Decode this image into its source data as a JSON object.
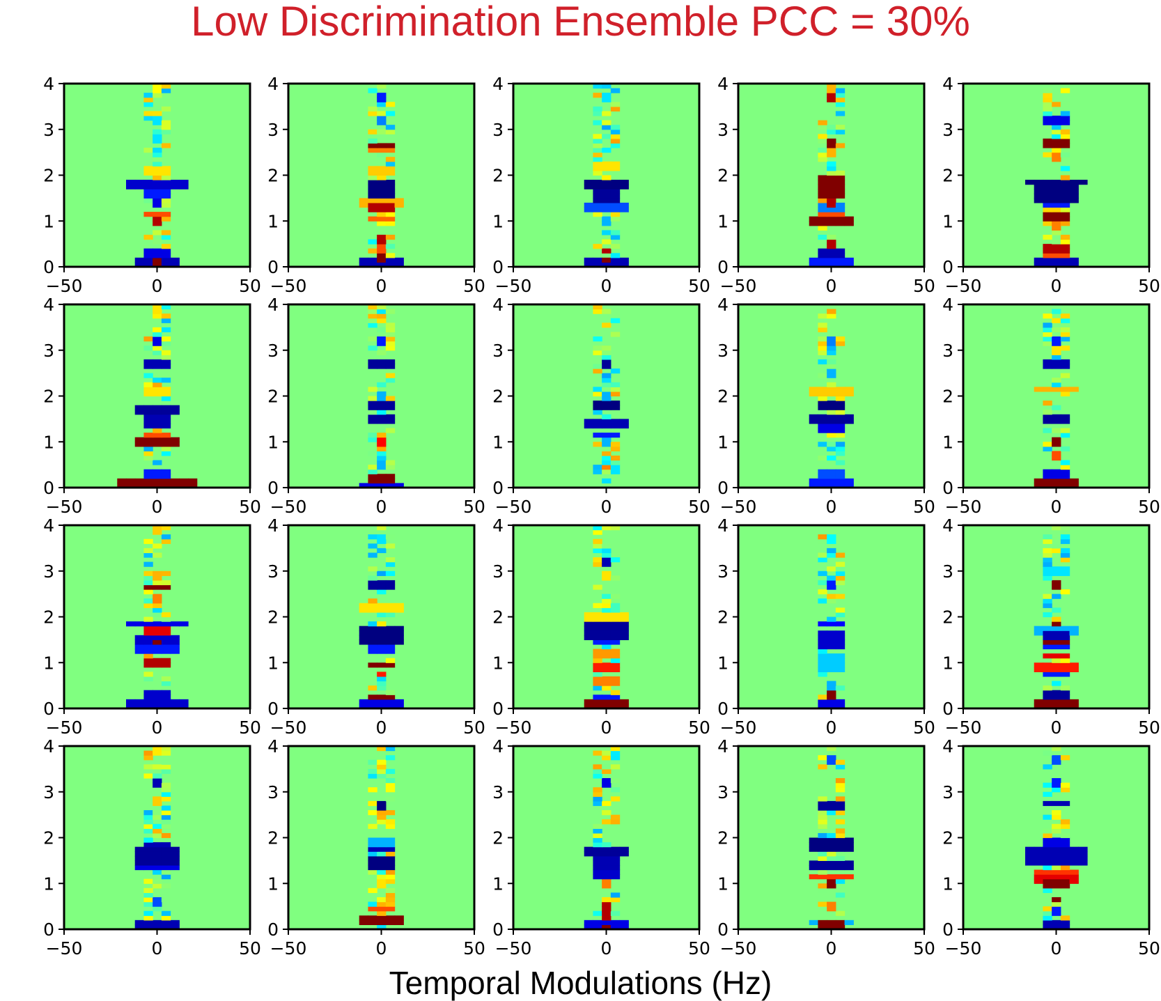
{
  "chart_data": {
    "type": "heatmap",
    "title": "Low Discrimination Ensemble PCC = 30%",
    "xlabel": "Temporal Modulations (Hz)",
    "ylabel": "",
    "grid": {
      "rows": 4,
      "cols": 5
    },
    "xlim": [
      -50,
      50
    ],
    "ylim": [
      0,
      4
    ],
    "x_ticks": [
      -50,
      0,
      50
    ],
    "y_ticks": [
      0,
      1,
      2,
      3,
      4
    ],
    "x_tick_labels": [
      "−50",
      "0",
      "50"
    ],
    "y_tick_labels": [
      "0",
      "1",
      "2",
      "3",
      "4"
    ],
    "n_time_bins": 21,
    "n_freq_bins": 40,
    "colormap": "jet",
    "value_range": [
      -1,
      1
    ],
    "note": "Each panel: list of horizontal features [y_center, half_width_hz, value, thickness] in data units; value -1=dark blue, 0=green background, +1=dark red",
    "panels": [
      [
        [
          1.8,
          18,
          -0.85,
          0.15
        ],
        [
          1.85,
          7,
          0.6,
          0.15
        ],
        [
          1.6,
          6,
          -0.7,
          0.2
        ],
        [
          1.4,
          4,
          -0.8,
          0.15
        ],
        [
          1.0,
          4,
          0.9,
          0.1
        ],
        [
          1.15,
          6,
          0.6,
          0.1
        ],
        [
          0.3,
          5,
          -0.8,
          0.1
        ],
        [
          0.1,
          14,
          -0.9,
          0.15
        ],
        [
          0.1,
          4,
          1.0,
          0.2
        ],
        [
          2.1,
          6,
          0.3,
          0.2
        ],
        [
          2.8,
          4,
          -0.3,
          0.1
        ],
        [
          3.2,
          3,
          -0.3,
          0.1
        ],
        [
          3.9,
          2,
          0.25,
          0.1
        ]
      ],
      [
        [
          1.7,
          8,
          -1.0,
          0.45
        ],
        [
          2.65,
          7,
          1.0,
          0.12
        ],
        [
          2.6,
          5,
          0.5,
          0.1
        ],
        [
          3.2,
          3,
          -0.5,
          0.1
        ],
        [
          3.7,
          4,
          -0.7,
          0.1
        ],
        [
          1.4,
          14,
          0.4,
          0.1
        ],
        [
          1.3,
          6,
          0.9,
          0.15
        ],
        [
          1.05,
          6,
          0.55,
          0.1
        ],
        [
          0.6,
          4,
          0.9,
          0.12
        ],
        [
          0.4,
          4,
          0.6,
          0.1
        ],
        [
          0.1,
          10,
          -0.9,
          0.12
        ],
        [
          0.2,
          4,
          1.0,
          0.1
        ],
        [
          2.1,
          8,
          0.35,
          0.2
        ]
      ],
      [
        [
          1.8,
          10,
          -1.0,
          0.2
        ],
        [
          1.55,
          7,
          -0.95,
          0.35
        ],
        [
          1.3,
          10,
          -0.6,
          0.1
        ],
        [
          1.0,
          4,
          -0.4,
          0.1
        ],
        [
          0.35,
          4,
          0.9,
          0.12
        ],
        [
          0.1,
          10,
          -0.9,
          0.12
        ],
        [
          0.15,
          4,
          1.0,
          0.1
        ],
        [
          3.2,
          2,
          -0.6,
          0.08
        ],
        [
          3.7,
          2,
          -0.3,
          0.1
        ],
        [
          2.2,
          5,
          0.3,
          0.15
        ]
      ],
      [
        [
          1.75,
          6,
          1.0,
          0.45
        ],
        [
          1.95,
          6,
          0.6,
          0.15
        ],
        [
          1.4,
          4,
          0.9,
          0.15
        ],
        [
          1.3,
          8,
          -0.5,
          0.1
        ],
        [
          1.0,
          10,
          1.0,
          0.15
        ],
        [
          1.1,
          5,
          0.6,
          0.1
        ],
        [
          0.5,
          4,
          0.9,
          0.1
        ],
        [
          0.3,
          6,
          -0.9,
          0.1
        ],
        [
          0.1,
          14,
          -0.7,
          0.12
        ],
        [
          2.7,
          4,
          1.0,
          0.1
        ],
        [
          2.5,
          4,
          0.4,
          0.1
        ],
        [
          3.7,
          3,
          0.9,
          0.1
        ],
        [
          3.9,
          2,
          0.4,
          0.1
        ]
      ],
      [
        [
          1.85,
          18,
          -1.0,
          0.15
        ],
        [
          1.6,
          10,
          -1.0,
          0.3
        ],
        [
          1.35,
          6,
          -0.7,
          0.15
        ],
        [
          1.1,
          6,
          1.0,
          0.12
        ],
        [
          0.9,
          4,
          0.5,
          0.1
        ],
        [
          0.4,
          5,
          0.9,
          0.15
        ],
        [
          0.2,
          6,
          0.6,
          0.15
        ],
        [
          0.1,
          10,
          -0.9,
          0.1
        ],
        [
          2.7,
          8,
          1.0,
          0.1
        ],
        [
          2.4,
          4,
          0.5,
          0.1
        ],
        [
          3.2,
          5,
          -0.8,
          0.1
        ],
        [
          3.7,
          4,
          -0.6,
          0.08
        ]
      ],
      [
        [
          1.7,
          10,
          -0.95,
          0.25
        ],
        [
          1.45,
          8,
          -0.9,
          0.3
        ],
        [
          1.9,
          5,
          1.0,
          0.08
        ],
        [
          1.0,
          12,
          1.0,
          0.12
        ],
        [
          1.15,
          5,
          0.6,
          0.1
        ],
        [
          0.6,
          4,
          0.7,
          0.08
        ],
        [
          0.3,
          5,
          -0.7,
          0.1
        ],
        [
          0.1,
          20,
          1.0,
          0.12
        ],
        [
          0.15,
          8,
          0.6,
          0.1
        ],
        [
          2.7,
          5,
          -0.9,
          0.12
        ],
        [
          3.2,
          4,
          -0.8,
          0.1
        ],
        [
          3.9,
          2,
          0.3,
          0.1
        ],
        [
          2.1,
          8,
          0.3,
          0.2
        ]
      ],
      [
        [
          1.8,
          8,
          -0.95,
          0.2
        ],
        [
          1.5,
          8,
          -0.95,
          0.2
        ],
        [
          2.7,
          5,
          -0.95,
          0.12
        ],
        [
          3.2,
          4,
          -0.7,
          0.1
        ],
        [
          1.0,
          4,
          0.75,
          0.12
        ],
        [
          0.5,
          3,
          -0.4,
          0.1
        ],
        [
          0.2,
          5,
          1.0,
          0.1
        ],
        [
          0.05,
          12,
          -0.8,
          0.08
        ],
        [
          2.0,
          4,
          -0.4,
          0.1
        ]
      ],
      [
        [
          1.8,
          8,
          -1.0,
          0.2
        ],
        [
          1.4,
          12,
          -0.9,
          0.25
        ],
        [
          1.15,
          7,
          -0.7,
          0.15
        ],
        [
          2.7,
          4,
          -0.95,
          0.12
        ],
        [
          0.45,
          4,
          0.5,
          0.1
        ],
        [
          0.1,
          12,
          -0.8,
          0.08
        ],
        [
          2.0,
          4,
          -0.4,
          0.1
        ],
        [
          1.0,
          3,
          -0.4,
          0.1
        ]
      ],
      [
        [
          1.8,
          8,
          -1.0,
          0.15
        ],
        [
          1.5,
          12,
          -0.95,
          0.2
        ],
        [
          1.3,
          8,
          -0.8,
          0.1
        ],
        [
          1.6,
          5,
          0.7,
          0.08
        ],
        [
          2.5,
          3,
          -0.4,
          0.1
        ],
        [
          3.2,
          4,
          -0.5,
          0.1
        ],
        [
          0.3,
          5,
          -0.6,
          0.1
        ],
        [
          0.1,
          14,
          -0.7,
          0.1
        ],
        [
          2.1,
          10,
          0.35,
          0.15
        ]
      ],
      [
        [
          1.5,
          8,
          -0.95,
          0.25
        ],
        [
          1.8,
          8,
          0.9,
          0.08
        ],
        [
          1.0,
          4,
          1.0,
          0.12
        ],
        [
          0.7,
          3,
          0.6,
          0.1
        ],
        [
          0.3,
          6,
          -0.8,
          0.15
        ],
        [
          0.1,
          10,
          1.0,
          0.1
        ],
        [
          2.7,
          5,
          -0.9,
          0.12
        ],
        [
          3.2,
          3,
          -0.7,
          0.1
        ],
        [
          2.15,
          14,
          0.4,
          0.1
        ]
      ],
      [
        [
          2.65,
          6,
          1.0,
          0.1
        ],
        [
          2.4,
          4,
          0.5,
          0.1
        ],
        [
          1.85,
          16,
          -0.8,
          0.12
        ],
        [
          1.7,
          6,
          0.8,
          0.1
        ],
        [
          1.5,
          12,
          -0.85,
          0.15
        ],
        [
          1.45,
          4,
          1.0,
          0.12
        ],
        [
          1.3,
          10,
          -0.7,
          0.1
        ],
        [
          1.0,
          6,
          0.9,
          0.12
        ],
        [
          0.3,
          8,
          -0.85,
          0.15
        ],
        [
          0.1,
          18,
          -0.85,
          0.15
        ],
        [
          2.9,
          3,
          0.4,
          0.1
        ],
        [
          3.9,
          2,
          0.35,
          0.1
        ]
      ],
      [
        [
          1.6,
          10,
          -1.0,
          0.4
        ],
        [
          1.3,
          6,
          -0.7,
          0.15
        ],
        [
          0.95,
          6,
          1.0,
          0.15
        ],
        [
          0.75,
          4,
          0.7,
          0.1
        ],
        [
          0.25,
          6,
          1.0,
          0.15
        ],
        [
          0.1,
          10,
          -0.8,
          0.1
        ],
        [
          2.7,
          5,
          -0.95,
          0.12
        ],
        [
          3.2,
          4,
          -0.6,
          0.08
        ],
        [
          3.7,
          3,
          -0.3,
          0.1
        ],
        [
          2.2,
          10,
          0.3,
          0.15
        ]
      ],
      [
        [
          1.7,
          10,
          -0.95,
          0.3
        ],
        [
          1.85,
          6,
          0.8,
          0.1
        ],
        [
          1.5,
          8,
          -0.7,
          0.1
        ],
        [
          1.2,
          8,
          0.45,
          0.15
        ],
        [
          0.9,
          6,
          0.7,
          0.1
        ],
        [
          0.6,
          6,
          0.5,
          0.15
        ],
        [
          0.1,
          12,
          1.0,
          0.1
        ],
        [
          0.2,
          6,
          -0.7,
          0.1
        ],
        [
          3.2,
          4,
          -0.9,
          0.1
        ],
        [
          2.9,
          4,
          0.3,
          0.1
        ],
        [
          2.0,
          10,
          0.3,
          0.15
        ]
      ],
      [
        [
          1.5,
          8,
          -0.85,
          0.35
        ],
        [
          1.85,
          5,
          -0.75,
          0.12
        ],
        [
          2.7,
          4,
          -0.7,
          0.1
        ],
        [
          0.3,
          4,
          1.0,
          0.1
        ],
        [
          0.1,
          8,
          -0.8,
          0.1
        ],
        [
          1.0,
          8,
          -0.35,
          0.3
        ],
        [
          0.5,
          4,
          -0.4,
          0.1
        ],
        [
          3.7,
          3,
          -0.25,
          0.1
        ]
      ],
      [
        [
          2.7,
          4,
          1.0,
          0.1
        ],
        [
          1.85,
          4,
          1.0,
          0.08
        ],
        [
          1.6,
          6,
          -0.9,
          0.15
        ],
        [
          1.45,
          5,
          1.0,
          0.1
        ],
        [
          1.35,
          8,
          -0.7,
          0.1
        ],
        [
          1.15,
          8,
          0.8,
          0.1
        ],
        [
          0.9,
          12,
          0.7,
          0.1
        ],
        [
          0.8,
          5,
          -0.7,
          0.1
        ],
        [
          0.3,
          6,
          -0.95,
          0.2
        ],
        [
          0.1,
          12,
          1.0,
          0.15
        ],
        [
          3.0,
          5,
          -0.3,
          0.1
        ],
        [
          1.7,
          12,
          -0.4,
          0.1
        ]
      ],
      [
        [
          1.6,
          10,
          -0.95,
          0.3
        ],
        [
          1.35,
          12,
          -0.8,
          0.15
        ],
        [
          1.8,
          8,
          -0.9,
          0.1
        ],
        [
          3.2,
          4,
          -0.9,
          0.1
        ],
        [
          0.6,
          4,
          -0.6,
          0.1
        ],
        [
          0.3,
          4,
          -0.7,
          0.08
        ],
        [
          0.1,
          12,
          -0.9,
          0.1
        ],
        [
          2.8,
          3,
          0.35,
          0.2
        ]
      ],
      [
        [
          1.45,
          8,
          -1.0,
          0.3
        ],
        [
          1.75,
          6,
          -0.9,
          0.12
        ],
        [
          2.7,
          4,
          -1.0,
          0.15
        ],
        [
          3.2,
          3,
          -0.5,
          0.08
        ],
        [
          0.2,
          10,
          1.0,
          0.2
        ],
        [
          0.45,
          6,
          0.6,
          0.15
        ],
        [
          1.0,
          3,
          0.3,
          0.1
        ],
        [
          1.9,
          8,
          -0.4,
          0.1
        ]
      ],
      [
        [
          1.7,
          14,
          -0.95,
          0.2
        ],
        [
          1.45,
          8,
          -0.9,
          0.3
        ],
        [
          1.2,
          6,
          -0.85,
          0.15
        ],
        [
          3.2,
          3,
          -0.8,
          0.1
        ],
        [
          0.4,
          4,
          0.9,
          0.35
        ],
        [
          0.1,
          12,
          -0.8,
          0.1
        ],
        [
          0.05,
          4,
          1.0,
          0.1
        ],
        [
          1.0,
          4,
          0.5,
          0.15
        ],
        [
          2.35,
          3,
          0.35,
          0.1
        ]
      ],
      [
        [
          1.85,
          14,
          -1.0,
          0.2
        ],
        [
          1.4,
          10,
          -0.95,
          0.2
        ],
        [
          1.15,
          10,
          0.65,
          0.12
        ],
        [
          1.0,
          4,
          1.0,
          0.1
        ],
        [
          2.7,
          6,
          -0.95,
          0.12
        ],
        [
          3.7,
          3,
          -0.6,
          0.1
        ],
        [
          0.5,
          4,
          0.5,
          0.15
        ],
        [
          0.1,
          6,
          1.0,
          0.12
        ],
        [
          0.15,
          12,
          -0.4,
          0.1
        ]
      ],
      [
        [
          1.6,
          16,
          -0.9,
          0.35
        ],
        [
          1.9,
          8,
          -0.8,
          0.1
        ],
        [
          1.1,
          12,
          0.8,
          0.15
        ],
        [
          1.0,
          5,
          1.0,
          0.1
        ],
        [
          2.75,
          6,
          -0.9,
          0.12
        ],
        [
          3.2,
          4,
          -0.7,
          0.1
        ],
        [
          3.7,
          4,
          -0.6,
          0.15
        ],
        [
          1.25,
          10,
          0.65,
          0.12
        ],
        [
          0.4,
          4,
          -0.7,
          0.1
        ],
        [
          0.1,
          6,
          -0.9,
          0.15
        ],
        [
          0.65,
          4,
          1.0,
          0.1
        ]
      ]
    ]
  },
  "panel_0": {
    "t": [
      0,
      0
    ],
    "y": [
      0,
      0
    ]
  },
  "dummy": null
}
